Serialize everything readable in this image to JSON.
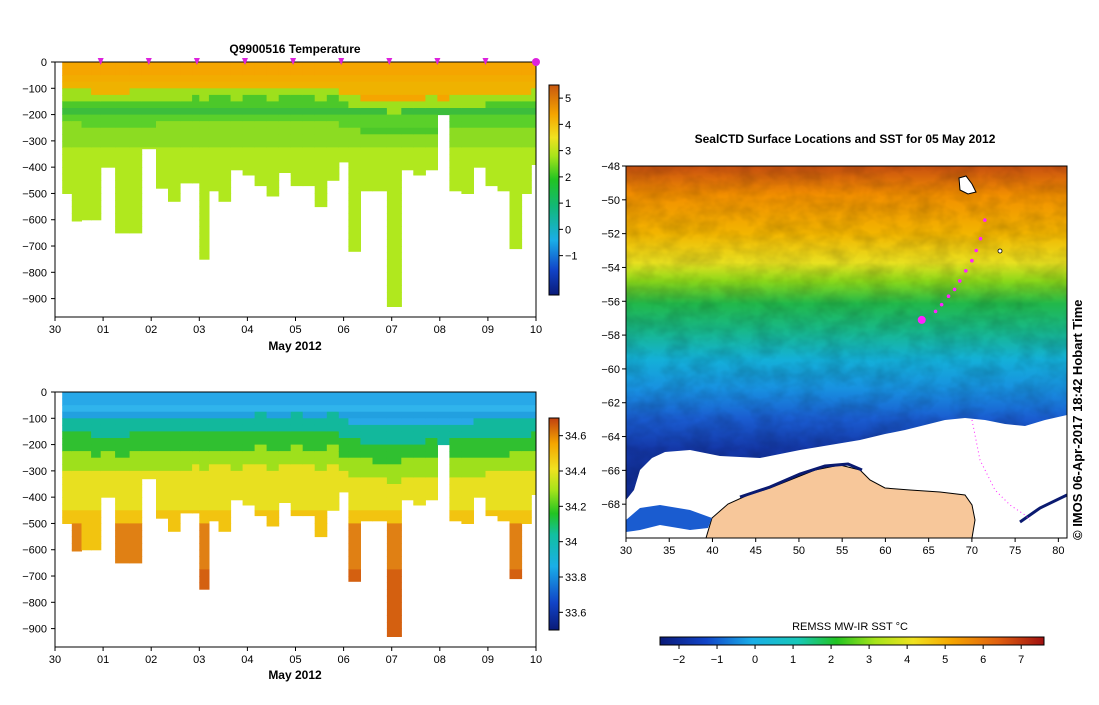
{
  "chart_data": [
    {
      "type": "heatmap",
      "title": "Q9900516  Temperature",
      "xlabel": "May 2012",
      "ylabel": "",
      "x_ticks": [
        "30",
        "01",
        "02",
        "03",
        "04",
        "05",
        "06",
        "07",
        "08",
        "09",
        "10"
      ],
      "xlim": [
        0,
        10
      ],
      "y_ticks": [
        "0",
        "−100",
        "−200",
        "−300",
        "−400",
        "−500",
        "−600",
        "−700",
        "−800",
        "−900"
      ],
      "ylim": [
        -970,
        0
      ],
      "colorbar_ticks": [
        "5",
        "4",
        "3",
        "2",
        "1",
        "0",
        "−1"
      ],
      "colorbar_range": [
        -2.5,
        5.5
      ],
      "profile_markers": [
        0.95,
        1.95,
        2.95,
        3.95,
        4.95,
        5.95,
        6.95,
        7.95,
        8.95,
        10
      ],
      "profiles": [
        {
          "x": 0.15,
          "depth": 500,
          "mixed": 100
        },
        {
          "x": 0.35,
          "depth": 605,
          "mixed": 105
        },
        {
          "x": 0.55,
          "depth": 600,
          "mixed": 110
        },
        {
          "x": 0.75,
          "depth": 600,
          "mixed": 120
        },
        {
          "x": 0.95,
          "depth": 400,
          "mixed": 115
        },
        {
          "x": 1.25,
          "depth": 650,
          "mixed": 120
        },
        {
          "x": 1.55,
          "depth": 650,
          "mixed": 110
        },
        {
          "x": 1.8,
          "depth": 330,
          "mixed": 110
        },
        {
          "x": 2.1,
          "depth": 480,
          "mixed": 100
        },
        {
          "x": 2.35,
          "depth": 530,
          "mixed": 100
        },
        {
          "x": 2.6,
          "depth": 460,
          "mixed": 105
        },
        {
          "x": 2.85,
          "depth": 460,
          "mixed": 95
        },
        {
          "x": 3.0,
          "depth": 750,
          "mixed": 100
        },
        {
          "x": 3.2,
          "depth": 490,
          "mixed": 95
        },
        {
          "x": 3.4,
          "depth": 530,
          "mixed": 95
        },
        {
          "x": 3.65,
          "depth": 410,
          "mixed": 100
        },
        {
          "x": 3.9,
          "depth": 430,
          "mixed": 95
        },
        {
          "x": 4.15,
          "depth": 470,
          "mixed": 90
        },
        {
          "x": 4.4,
          "depth": 510,
          "mixed": 100
        },
        {
          "x": 4.65,
          "depth": 420,
          "mixed": 95
        },
        {
          "x": 4.9,
          "depth": 470,
          "mixed": 90
        },
        {
          "x": 5.15,
          "depth": 470,
          "mixed": 95
        },
        {
          "x": 5.4,
          "depth": 550,
          "mixed": 100
        },
        {
          "x": 5.65,
          "depth": 450,
          "mixed": 90
        },
        {
          "x": 5.9,
          "depth": 380,
          "mixed": 120
        },
        {
          "x": 6.1,
          "depth": 720,
          "mixed": 130
        },
        {
          "x": 6.35,
          "depth": 490,
          "mixed": 140
        },
        {
          "x": 6.6,
          "depth": 490,
          "mixed": 145
        },
        {
          "x": 6.9,
          "depth": 930,
          "mixed": 150
        },
        {
          "x": 7.2,
          "depth": 410,
          "mixed": 140
        },
        {
          "x": 7.45,
          "depth": 430,
          "mixed": 140
        },
        {
          "x": 7.7,
          "depth": 410,
          "mixed": 135
        },
        {
          "x": 7.95,
          "depth": 200,
          "mixed": 140
        },
        {
          "x": 8.2,
          "depth": 490,
          "mixed": 130
        },
        {
          "x": 8.45,
          "depth": 500,
          "mixed": 130
        },
        {
          "x": 8.7,
          "depth": 400,
          "mixed": 125
        },
        {
          "x": 8.95,
          "depth": 470,
          "mixed": 120
        },
        {
          "x": 9.2,
          "depth": 490,
          "mixed": 120
        },
        {
          "x": 9.45,
          "depth": 710,
          "mixed": 115
        },
        {
          "x": 9.7,
          "depth": 500,
          "mixed": 115
        },
        {
          "x": 9.9,
          "depth": 390,
          "mixed": 110
        }
      ]
    },
    {
      "type": "heatmap",
      "title": "",
      "xlabel": "May 2012",
      "x_ticks": [
        "30",
        "01",
        "02",
        "03",
        "04",
        "05",
        "06",
        "07",
        "08",
        "09",
        "10"
      ],
      "xlim": [
        0,
        10
      ],
      "y_ticks": [
        "0",
        "−100",
        "−200",
        "−300",
        "−400",
        "−500",
        "−600",
        "−700",
        "−800",
        "−900"
      ],
      "ylim": [
        -970,
        0
      ],
      "colorbar_ticks": [
        "34.6",
        "34.4",
        "34.2",
        "34",
        "33.8",
        "33.6"
      ],
      "colorbar_range": [
        33.5,
        34.7
      ]
    },
    {
      "type": "heatmap",
      "title": "SealCTD Surface Locations and SST for 05 May 2012",
      "x_ticks": [
        "30",
        "35",
        "40",
        "45",
        "50",
        "55",
        "60",
        "65",
        "70",
        "75",
        "80"
      ],
      "xlim": [
        30,
        81
      ],
      "y_ticks": [
        "−48",
        "−50",
        "−52",
        "−54",
        "−56",
        "−58",
        "−60",
        "−62",
        "−64",
        "−66",
        "−68"
      ],
      "ylim": [
        -70,
        -48
      ],
      "colorbar_label": "REMSS MW-IR SST °C",
      "colorbar_ticks": [
        "−2",
        "−1",
        "0",
        "1",
        "2",
        "3",
        "4",
        "5",
        "6",
        "7"
      ],
      "colorbar_range": [
        -2.5,
        7.6
      ],
      "seal_track": [
        {
          "lon": 71.5,
          "lat": -51.2
        },
        {
          "lon": 71.0,
          "lat": -52.3
        },
        {
          "lon": 70.5,
          "lat": -53.0
        },
        {
          "lon": 70.0,
          "lat": -53.6
        },
        {
          "lon": 69.3,
          "lat": -54.2
        },
        {
          "lon": 68.6,
          "lat": -54.8
        },
        {
          "lon": 68.0,
          "lat": -55.3
        },
        {
          "lon": 67.3,
          "lat": -55.7
        },
        {
          "lon": 66.5,
          "lat": -56.2
        },
        {
          "lon": 65.8,
          "lat": -56.6
        },
        {
          "lon": 64.2,
          "lat": -57.1
        }
      ],
      "credit": "© IMOS 06-Apr-2017 18:42 Hobart Time"
    }
  ],
  "colors": {
    "profile_marker": "#dd22dd",
    "land": "#f7c79a",
    "seal_track": "#ff22ff"
  }
}
